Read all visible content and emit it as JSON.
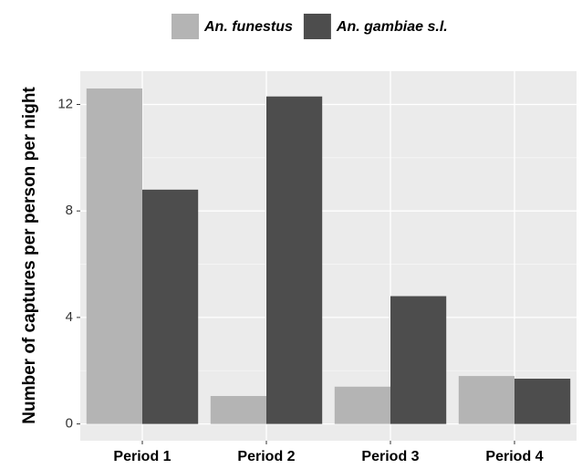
{
  "chart_data": {
    "type": "bar",
    "y_label": "Number of captures per person per night",
    "categories": [
      "Period 1",
      "Period 2",
      "Period 3",
      "Period 4"
    ],
    "series": [
      {
        "name": "An. funestus",
        "color": "#b4b4b4",
        "values": [
          12.6,
          1.05,
          1.4,
          1.8
        ]
      },
      {
        "name": "An. gambiae s.l.",
        "color": "#4d4d4d",
        "values": [
          8.8,
          12.3,
          4.8,
          1.7
        ]
      }
    ],
    "ylim": [
      -0.63,
      13.25
    ],
    "yticks": [
      0,
      4,
      8,
      12
    ],
    "minor_yticks": [
      2,
      6,
      10
    ],
    "grid": true,
    "legend_position": "top"
  }
}
